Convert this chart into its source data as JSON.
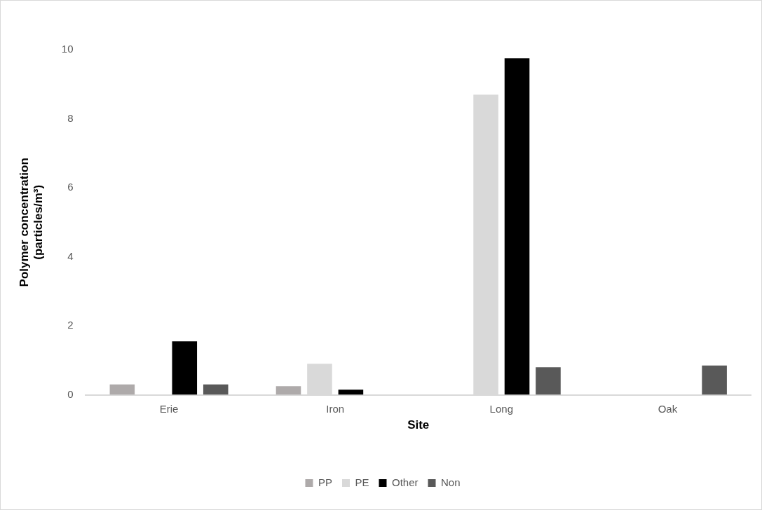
{
  "chart_data": {
    "type": "bar",
    "xlabel": "Site",
    "ylabel": "Polymer concentration\n(particles/m³)",
    "categories": [
      "Erie",
      "Iron",
      "Long",
      "Oak"
    ],
    "series": [
      {
        "name": "PP",
        "color": "#aeaaaa",
        "values": [
          0.3,
          0.25,
          0,
          0
        ]
      },
      {
        "name": "PE",
        "color": "#d9d9d9",
        "values": [
          0,
          0.9,
          8.7,
          0
        ]
      },
      {
        "name": "Other",
        "color": "#000000",
        "values": [
          1.55,
          0.15,
          9.75,
          0
        ]
      },
      {
        "name": "Non",
        "color": "#595959",
        "values": [
          0.3,
          0,
          0.8,
          0.85
        ]
      }
    ],
    "ylim": [
      0,
      10
    ],
    "yticks": [
      0,
      2,
      4,
      6,
      8,
      10
    ],
    "grid": false,
    "legend": "bottom"
  }
}
